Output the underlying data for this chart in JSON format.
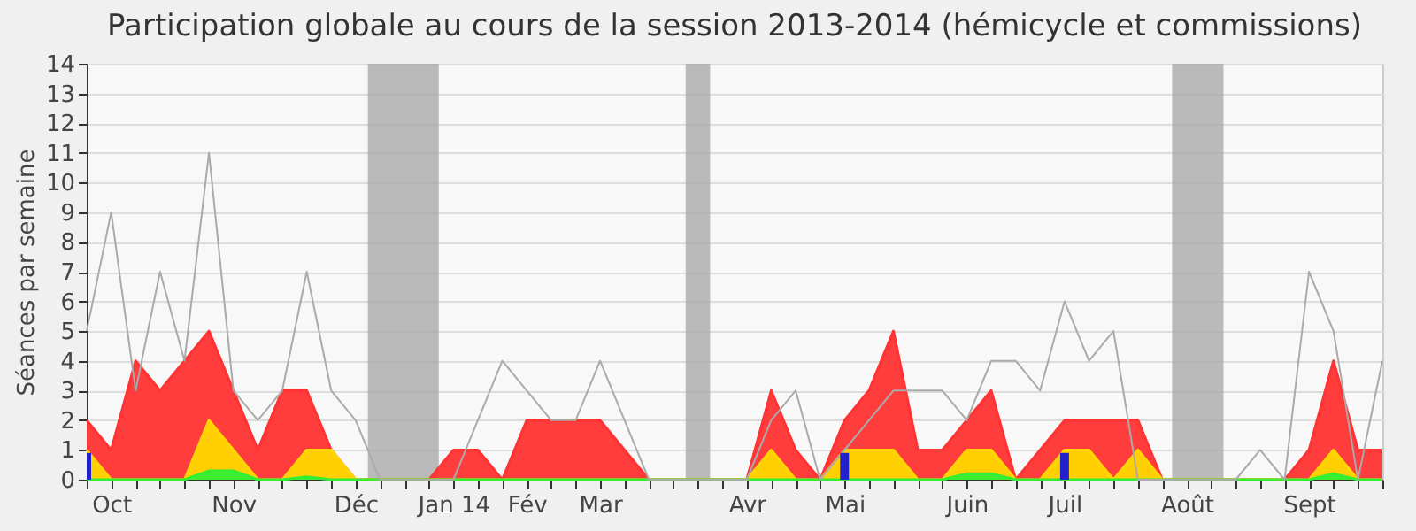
{
  "chart_data": {
    "type": "area",
    "title": "Participation globale au cours de la session 2013-2014 (hémicycle et commissions)",
    "ylabel": "Séances par semaine",
    "categories": [
      null,
      "Oct",
      null,
      null,
      null,
      null,
      "Nov",
      null,
      null,
      null,
      null,
      "Déc",
      null,
      null,
      null,
      "Jan 14",
      null,
      null,
      "Fév",
      null,
      null,
      "Mar",
      null,
      null,
      null,
      null,
      null,
      "Avr",
      null,
      null,
      null,
      "Mai",
      null,
      null,
      null,
      null,
      "Juin",
      null,
      null,
      null,
      "Juil",
      null,
      null,
      null,
      null,
      "Août",
      null,
      null,
      null,
      null,
      "Sept",
      null,
      null,
      null
    ],
    "series": [
      {
        "color": "#ff3333",
        "values": [
          2,
          1,
          4,
          3,
          4,
          5,
          3,
          1,
          3,
          3,
          1,
          0,
          0,
          0,
          0,
          1,
          1,
          0,
          2,
          2,
          2,
          2,
          1,
          0,
          0,
          0,
          0,
          0,
          3,
          1,
          0,
          2,
          3,
          5,
          1,
          1,
          2,
          3,
          0,
          1,
          2,
          2,
          2,
          2,
          0,
          0,
          0,
          0,
          0,
          0,
          1,
          4,
          1,
          1
        ]
      },
      {
        "color": "#ffd700",
        "values": [
          1,
          0,
          0,
          0,
          0,
          2,
          1,
          0,
          0,
          1,
          1,
          0,
          0,
          0,
          0,
          0,
          0,
          0,
          0,
          0,
          0,
          0,
          0,
          0,
          0,
          0,
          0,
          0,
          1,
          0,
          0,
          1,
          1,
          1,
          0,
          0,
          1,
          1,
          0,
          0,
          1,
          1,
          0,
          1,
          0,
          0,
          0,
          0,
          0,
          0,
          0,
          1,
          0,
          0
        ]
      },
      {
        "color": "#33ee33",
        "values": [
          0,
          0,
          0,
          0,
          0,
          0.3,
          0.3,
          0,
          0,
          0.1,
          0,
          0,
          0,
          0,
          0,
          0,
          0,
          0,
          0,
          0,
          0,
          0,
          0,
          0,
          0,
          0,
          0,
          0,
          0,
          0,
          0,
          0,
          0,
          0,
          0,
          0,
          0.2,
          0.2,
          0,
          0,
          0,
          0,
          0,
          0,
          0,
          0,
          0,
          0,
          0,
          0,
          0,
          0.2,
          0,
          0
        ]
      },
      {
        "type": "line",
        "color": "#aaaaaa",
        "values": [
          5,
          9,
          3,
          7,
          4,
          11,
          3,
          2,
          3,
          7,
          3,
          2,
          0,
          0,
          0,
          0,
          2,
          4,
          3,
          2,
          2,
          4,
          2,
          0,
          0,
          0,
          0,
          0,
          2,
          3,
          0,
          1,
          2,
          3,
          3,
          3,
          2,
          4,
          4,
          3,
          6,
          4,
          5,
          0,
          0,
          0,
          0,
          0,
          1,
          0,
          7,
          5,
          0,
          4
        ]
      },
      {
        "type": "bar",
        "color": "#2222cc",
        "values": [
          0.9,
          null,
          null,
          null,
          null,
          null,
          null,
          null,
          null,
          null,
          null,
          null,
          null,
          null,
          null,
          null,
          null,
          null,
          null,
          null,
          null,
          null,
          null,
          null,
          null,
          null,
          null,
          null,
          null,
          null,
          null,
          0.9,
          null,
          null,
          null,
          null,
          null,
          null,
          null,
          null,
          0.9,
          null,
          null,
          null,
          null,
          null,
          null,
          null,
          null,
          null,
          null,
          null,
          null,
          null
        ]
      }
    ],
    "ylim": [
      0,
      14
    ],
    "yticks": [
      0,
      1,
      2,
      3,
      4,
      5,
      6,
      7,
      8,
      9,
      10,
      11,
      12,
      13,
      14
    ],
    "grid": "y"
  }
}
